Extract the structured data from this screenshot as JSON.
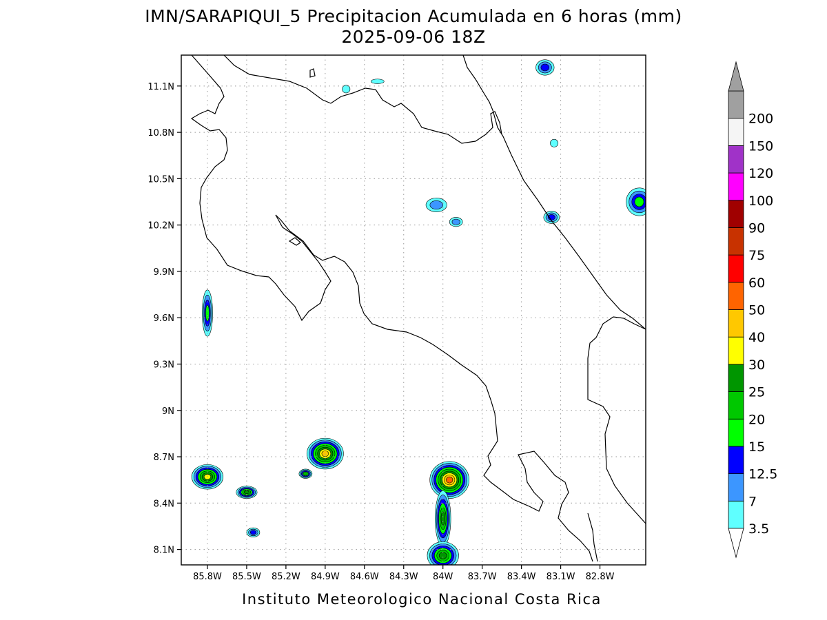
{
  "header": {
    "title": "IMN/SARAPIQUI_5 Precipitacion Acumulada en 6 horas (mm)",
    "subtitle": "2025-09-06 18Z"
  },
  "map": {
    "lon_range": [
      -86.0,
      -82.45
    ],
    "lat_range": [
      8.0,
      11.3
    ],
    "lat_ticks": [
      {
        "value": 11.1,
        "label": "11.1N"
      },
      {
        "value": 10.8,
        "label": "10.8N"
      },
      {
        "value": 10.5,
        "label": "10.5N"
      },
      {
        "value": 10.2,
        "label": "10.2N"
      },
      {
        "value": 9.9,
        "label": "9.9N"
      },
      {
        "value": 9.6,
        "label": "9.6N"
      },
      {
        "value": 9.3,
        "label": "9.3N"
      },
      {
        "value": 9.0,
        "label": "9N"
      },
      {
        "value": 8.7,
        "label": "8.7N"
      },
      {
        "value": 8.4,
        "label": "8.4N"
      },
      {
        "value": 8.1,
        "label": "8.1N"
      }
    ],
    "lon_ticks": [
      {
        "value": -85.8,
        "label": "85.8W"
      },
      {
        "value": -85.5,
        "label": "85.5W"
      },
      {
        "value": -85.2,
        "label": "85.2W"
      },
      {
        "value": -84.9,
        "label": "84.9W"
      },
      {
        "value": -84.6,
        "label": "84.6W"
      },
      {
        "value": -84.3,
        "label": "84.3W"
      },
      {
        "value": -84.0,
        "label": "84W"
      },
      {
        "value": -83.7,
        "label": "83.7W"
      },
      {
        "value": -83.4,
        "label": "83.4W"
      },
      {
        "value": -83.1,
        "label": "83.1W"
      },
      {
        "value": -82.8,
        "label": "82.8W"
      }
    ],
    "grid": true
  },
  "colorbar": {
    "levels": [
      {
        "label": "3.5",
        "color": "#5fffff"
      },
      {
        "label": "7",
        "color": "#3c96ff"
      },
      {
        "label": "12.5",
        "color": "#0000ff"
      },
      {
        "label": "15",
        "color": "#00ff00"
      },
      {
        "label": "20",
        "color": "#00c800"
      },
      {
        "label": "25",
        "color": "#009600"
      },
      {
        "label": "30",
        "color": "#ffff00"
      },
      {
        "label": "40",
        "color": "#ffc800"
      },
      {
        "label": "50",
        "color": "#ff6400"
      },
      {
        "label": "60",
        "color": "#ff0000"
      },
      {
        "label": "75",
        "color": "#c83200"
      },
      {
        "label": "90",
        "color": "#a00000"
      },
      {
        "label": "100",
        "color": "#ff00ff"
      },
      {
        "label": "120",
        "color": "#a032c8"
      },
      {
        "label": "150",
        "color": "#f5f5f5"
      },
      {
        "label": "200",
        "color": "#a0a0a0"
      }
    ],
    "min_arrow_color": "#ffffff",
    "max_arrow_color": "#a0a0a0"
  },
  "precip_cells": [
    {
      "name": "cell-nw-tip",
      "lon": -83.22,
      "lat": 11.22,
      "rx": 0.07,
      "ry": 0.05,
      "level": 2
    },
    {
      "name": "cell-small-n1",
      "lon": -84.74,
      "lat": 11.08,
      "rx": 0.03,
      "ry": 0.025,
      "level": 0
    },
    {
      "name": "cell-small-n2",
      "lon": -84.5,
      "lat": 11.13,
      "rx": 0.05,
      "ry": 0.015,
      "level": 0
    },
    {
      "name": "cell-ne-1",
      "lon": -83.15,
      "lat": 10.73,
      "rx": 0.03,
      "ry": 0.025,
      "level": 0
    },
    {
      "name": "cell-central-1",
      "lon": -84.05,
      "lat": 10.33,
      "rx": 0.08,
      "ry": 0.045,
      "level": 1
    },
    {
      "name": "cell-central-2",
      "lon": -83.9,
      "lat": 10.22,
      "rx": 0.05,
      "ry": 0.03,
      "level": 1
    },
    {
      "name": "cell-limon-1",
      "lon": -83.17,
      "lat": 10.25,
      "rx": 0.06,
      "ry": 0.04,
      "level": 2
    },
    {
      "name": "cell-east-edge",
      "lon": -82.5,
      "lat": 10.35,
      "rx": 0.1,
      "ry": 0.09,
      "level": 3
    },
    {
      "name": "cell-nicoya",
      "lon": -85.8,
      "lat": 9.63,
      "rx": 0.04,
      "ry": 0.15,
      "level": 3
    },
    {
      "name": "cell-sw-1",
      "lon": -85.8,
      "lat": 8.57,
      "rx": 0.12,
      "ry": 0.08,
      "level": 6
    },
    {
      "name": "cell-sw-2",
      "lon": -85.5,
      "lat": 8.47,
      "rx": 0.08,
      "ry": 0.04,
      "level": 5
    },
    {
      "name": "cell-sw-3",
      "lon": -85.45,
      "lat": 8.21,
      "rx": 0.05,
      "ry": 0.03,
      "level": 2
    },
    {
      "name": "cell-mid-s",
      "lon": -84.9,
      "lat": 8.72,
      "rx": 0.14,
      "ry": 0.1,
      "level": 7
    },
    {
      "name": "cell-mid-s2",
      "lon": -85.05,
      "lat": 8.59,
      "rx": 0.05,
      "ry": 0.03,
      "level": 4
    },
    {
      "name": "cell-osa-1",
      "lon": -83.95,
      "lat": 8.55,
      "rx": 0.15,
      "ry": 0.12,
      "level": 8
    },
    {
      "name": "cell-osa-2",
      "lon": -84.0,
      "lat": 8.3,
      "rx": 0.06,
      "ry": 0.18,
      "level": 5
    },
    {
      "name": "cell-osa-3",
      "lon": -84.0,
      "lat": 8.06,
      "rx": 0.12,
      "ry": 0.09,
      "level": 5
    }
  ],
  "footer": {
    "credit": "Instituto Meteorologico Nacional Costa Rica"
  }
}
